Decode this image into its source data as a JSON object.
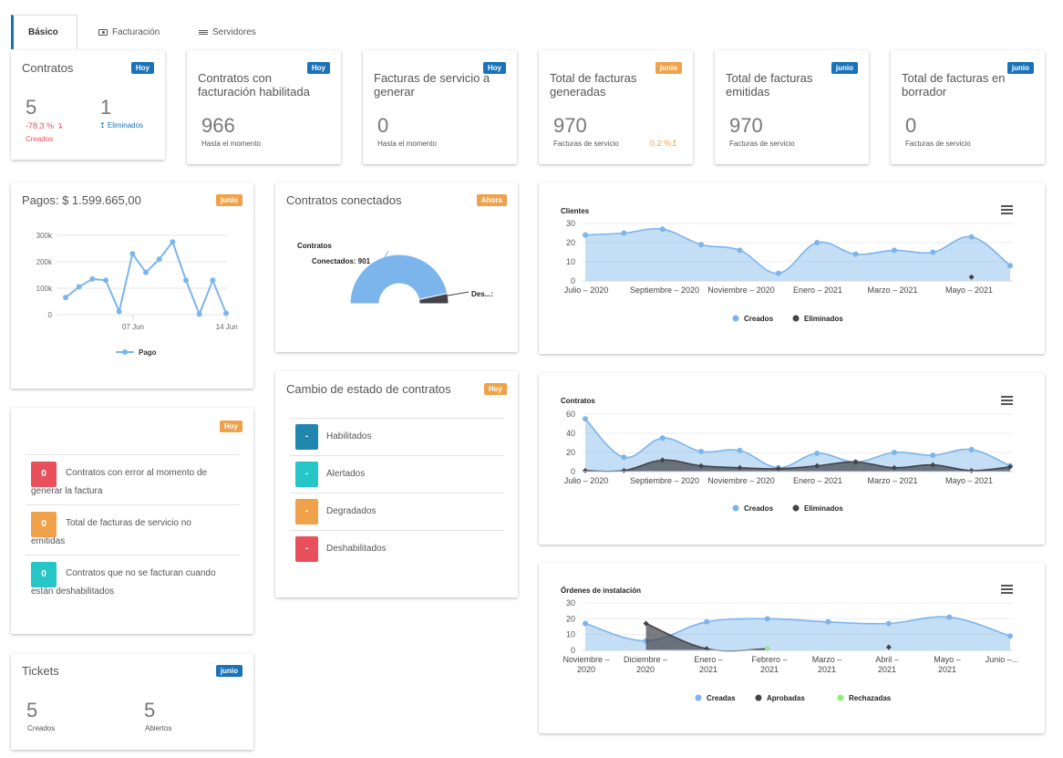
{
  "tabs": [
    {
      "label": "Básico",
      "icon": "none"
    },
    {
      "label": "Facturación",
      "icon": "money-icon"
    },
    {
      "label": "Servidores",
      "icon": "list-icon"
    }
  ],
  "cards": {
    "contratos": {
      "title": "Contratos",
      "badge": "Hoy",
      "created_value": "5",
      "created_change": "-78.3 % ↴",
      "created_label": "Creados",
      "deleted_value": "1",
      "deleted_label": "↥ Eliminados"
    },
    "facturacion_habilitada": {
      "title": "Contratos con facturación habilitada",
      "badge": "Hoy",
      "value": "966",
      "sub": "Hasta el momento"
    },
    "facturas_generar": {
      "title": "Facturas de servicio a generar",
      "badge": "Hoy",
      "value": "0",
      "sub": "Hasta el momento"
    },
    "facturas_generadas": {
      "title": "Total de facturas generadas",
      "badge": "junio",
      "value": "970",
      "sub": "Facturas de servicio",
      "change": "0.2 %↥"
    },
    "facturas_emitidas": {
      "title": "Total de facturas emitidas",
      "badge": "junio",
      "value": "970",
      "sub": "Facturas de servicio"
    },
    "facturas_borrador": {
      "title": "Total de facturas en borrador",
      "badge": "junio",
      "value": "0",
      "sub": "Facturas de servicio"
    }
  },
  "pagos": {
    "title": "Pagos: $ 1.599.665,00",
    "badge": "junio"
  },
  "alertas": {
    "badge": "Hoy",
    "items": [
      {
        "value": "0",
        "text": "Contratos con error al momento de generar la factura",
        "color": "#e8505b"
      },
      {
        "value": "0",
        "text": "Total de facturas de servicio no emitidas",
        "color": "#f0a24a"
      },
      {
        "value": "0",
        "text": "Contratos que no se facturan cuando están deshabilitados",
        "color": "#26c6c6"
      }
    ]
  },
  "tickets": {
    "title": "Tickets",
    "badge": "junio",
    "created_value": "5",
    "created_label": "Creados",
    "open_value": "5",
    "open_label": "Abiertos"
  },
  "conectados": {
    "title": "Contratos conectados",
    "badge": "Ahora"
  },
  "estado": {
    "title": "Cambio de estado de contratos",
    "badge": "Hoy",
    "items": [
      {
        "value": "-",
        "label": "Habilitados",
        "color": "#1f86b0"
      },
      {
        "value": "-",
        "label": "Alertados",
        "color": "#26c6c6"
      },
      {
        "value": "-",
        "label": "Degradados",
        "color": "#f0a24a"
      },
      {
        "value": "-",
        "label": "Deshabilitados",
        "color": "#e8505b"
      }
    ]
  },
  "chart_data": [
    {
      "id": "pagos",
      "type": "line",
      "title": "",
      "x_tick_labels": [
        "07 Jun",
        "14 Jun"
      ],
      "y_tick_labels": [
        "0",
        "100k",
        "200k",
        "300k"
      ],
      "ylim": [
        0,
        300000
      ],
      "series": [
        {
          "name": "Pago",
          "color": "#7cb5ec",
          "values": [
            65000,
            105000,
            135000,
            130000,
            12000,
            230000,
            160000,
            210000,
            275000,
            130000,
            2000,
            130000,
            5000
          ]
        }
      ],
      "legend": "bottom"
    },
    {
      "id": "conectados",
      "type": "pie",
      "title": "Contratos",
      "slices": [
        {
          "label": "Conectados: 901",
          "value": 901,
          "color": "#7cb5ec"
        },
        {
          "label": "Des...:",
          "value": 65,
          "color": "#434348"
        }
      ]
    },
    {
      "id": "clientes",
      "type": "area",
      "title": "Clientes",
      "x_tick_labels": [
        "Julio – 2020",
        "Septiembre – 2020",
        "Noviembre – 2020",
        "Enero – 2021",
        "Marzo – 2021",
        "Mayo – 2021"
      ],
      "y_tick_labels": [
        "0",
        "10",
        "20",
        "30"
      ],
      "ylim": [
        0,
        30
      ],
      "series": [
        {
          "name": "Creados",
          "color": "#7cb5ec",
          "values": [
            24,
            25,
            27,
            19,
            16,
            4,
            20,
            14,
            16,
            15,
            23,
            8
          ]
        },
        {
          "name": "Eliminados",
          "color": "#434348",
          "values": [
            null,
            null,
            null,
            null,
            null,
            null,
            null,
            null,
            null,
            null,
            2,
            null
          ]
        }
      ],
      "legend": "bottom"
    },
    {
      "id": "contratos",
      "type": "area",
      "title": "Contratos",
      "x_tick_labels": [
        "Julio – 2020",
        "Septiembre – 2020",
        "Noviembre – 2020",
        "Enero – 2021",
        "Marzo – 2021",
        "Mayo – 2021"
      ],
      "y_tick_labels": [
        "0",
        "20",
        "40",
        "60"
      ],
      "ylim": [
        0,
        60
      ],
      "series": [
        {
          "name": "Creados",
          "color": "#7cb5ec",
          "values": [
            55,
            15,
            35,
            21,
            22,
            4,
            19,
            10,
            20,
            17,
            23,
            6
          ]
        },
        {
          "name": "Eliminados",
          "color": "#434348",
          "values": [
            1,
            1,
            12,
            6,
            4,
            3,
            6,
            10,
            4,
            7,
            1,
            5
          ]
        }
      ],
      "legend": "bottom"
    },
    {
      "id": "ordenes",
      "type": "area",
      "title": "Órdenes de instalación",
      "x_tick_labels": [
        "Noviembre – 2020",
        "Diciembre – 2020",
        "Enero – 2021",
        "Febrero – 2021",
        "Marzo – 2021",
        "Abril – 2021",
        "Mayo – 2021",
        "Junio –..."
      ],
      "y_tick_labels": [
        "0",
        "10",
        "20",
        "30"
      ],
      "ylim": [
        0,
        30
      ],
      "series": [
        {
          "name": "Creadas",
          "color": "#7cb5ec",
          "values": [
            17,
            6,
            18,
            20,
            18,
            17,
            21,
            9
          ]
        },
        {
          "name": "Aprobadas",
          "color": "#434348",
          "values": [
            null,
            17,
            1,
            1,
            null,
            2,
            null,
            null
          ]
        },
        {
          "name": "Rechazadas",
          "color": "#90ed7d",
          "values": [
            null,
            null,
            null,
            1,
            null,
            null,
            null,
            null
          ]
        }
      ],
      "legend": "bottom"
    }
  ]
}
